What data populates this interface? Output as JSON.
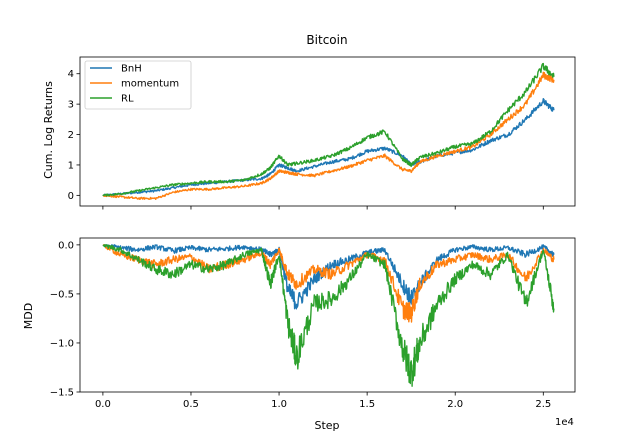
{
  "chart_data": [
    {
      "type": "line",
      "title": "Bitcoin",
      "xlabel": "",
      "ylabel": "Cum. Log Returns",
      "xlim": [
        -1300,
        26800
      ],
      "ylim": [
        -0.35,
        4.55
      ],
      "yticks": [
        0,
        1,
        2,
        3,
        4
      ],
      "ytick_labels": [
        "0",
        "1",
        "2",
        "3",
        "4"
      ],
      "legend": "top-left",
      "grid": false,
      "x": [
        0,
        1000,
        2000,
        3000,
        4000,
        5000,
        6000,
        7000,
        8000,
        9000,
        9500,
        10000,
        10500,
        11000,
        12000,
        13000,
        14000,
        15000,
        16000,
        17000,
        17500,
        18000,
        19000,
        20000,
        21000,
        22000,
        23000,
        24000,
        25000,
        25600
      ],
      "series": [
        {
          "name": "BnH",
          "color": "#1f77b4",
          "values": [
            0,
            0.05,
            0.1,
            0.15,
            0.25,
            0.35,
            0.4,
            0.45,
            0.5,
            0.55,
            0.7,
            1.0,
            0.9,
            0.8,
            0.95,
            1.1,
            1.2,
            1.45,
            1.55,
            1.3,
            1.0,
            1.1,
            1.3,
            1.4,
            1.5,
            1.8,
            2.0,
            2.5,
            3.1,
            2.8
          ]
        },
        {
          "name": "momentum",
          "color": "#ff7f0e",
          "values": [
            0,
            -0.05,
            -0.1,
            -0.1,
            0.1,
            0.2,
            0.2,
            0.25,
            0.3,
            0.4,
            0.55,
            0.8,
            0.75,
            0.7,
            0.65,
            0.8,
            0.95,
            1.15,
            1.3,
            0.85,
            0.8,
            1.1,
            1.3,
            1.45,
            1.6,
            2.0,
            2.5,
            3.0,
            3.95,
            3.8
          ]
        },
        {
          "name": "RL",
          "color": "#2ca02c",
          "values": [
            0,
            0.05,
            0.15,
            0.25,
            0.35,
            0.4,
            0.45,
            0.45,
            0.5,
            0.7,
            0.9,
            1.3,
            1.0,
            1.05,
            1.15,
            1.3,
            1.55,
            1.9,
            2.1,
            1.2,
            1.0,
            1.25,
            1.4,
            1.6,
            1.7,
            2.1,
            2.8,
            3.4,
            4.25,
            3.9
          ]
        }
      ]
    },
    {
      "type": "line",
      "title": "",
      "xlabel": "Step",
      "ylabel": "MDD",
      "x_offset_label": "1e4",
      "xlim": [
        -1300,
        26800
      ],
      "ylim": [
        -1.5,
        0.07
      ],
      "xticks": [
        0,
        5000,
        10000,
        15000,
        20000,
        25000
      ],
      "xtick_labels": [
        "0.0",
        "0.5",
        "1.0",
        "1.5",
        "2.0",
        "2.5"
      ],
      "yticks": [
        0,
        -0.5,
        -1.0,
        -1.5
      ],
      "ytick_labels": [
        "0.0",
        "−0.5",
        "−1.0",
        "−1.5"
      ],
      "grid": false,
      "x": [
        0,
        1000,
        2000,
        3000,
        4000,
        5000,
        6000,
        7000,
        8000,
        9000,
        9500,
        10000,
        10500,
        11000,
        12000,
        13000,
        14000,
        15000,
        16000,
        17000,
        17500,
        18000,
        19000,
        20000,
        21000,
        22000,
        23000,
        24000,
        25000,
        25600
      ],
      "series": [
        {
          "name": "BnH",
          "color": "#1f77b4",
          "values": [
            0,
            -0.03,
            -0.05,
            -0.02,
            -0.06,
            -0.03,
            -0.05,
            -0.04,
            -0.02,
            -0.05,
            -0.1,
            -0.05,
            -0.45,
            -0.6,
            -0.35,
            -0.2,
            -0.15,
            -0.08,
            -0.05,
            -0.4,
            -0.55,
            -0.4,
            -0.15,
            -0.05,
            -0.02,
            -0.05,
            -0.03,
            -0.1,
            -0.02,
            -0.1
          ]
        },
        {
          "name": "momentum",
          "color": "#ff7f0e",
          "values": [
            0,
            -0.1,
            -0.15,
            -0.2,
            -0.15,
            -0.12,
            -0.25,
            -0.2,
            -0.15,
            -0.08,
            -0.2,
            -0.05,
            -0.3,
            -0.4,
            -0.25,
            -0.3,
            -0.2,
            -0.1,
            -0.15,
            -0.65,
            -0.7,
            -0.4,
            -0.2,
            -0.15,
            -0.1,
            -0.15,
            -0.1,
            -0.35,
            -0.05,
            -0.15
          ]
        },
        {
          "name": "RL",
          "color": "#2ca02c",
          "values": [
            0,
            -0.05,
            -0.15,
            -0.25,
            -0.3,
            -0.2,
            -0.25,
            -0.2,
            -0.1,
            -0.05,
            -0.4,
            -0.1,
            -0.8,
            -1.15,
            -0.6,
            -0.55,
            -0.35,
            -0.1,
            -0.2,
            -1.05,
            -1.3,
            -1.0,
            -0.6,
            -0.35,
            -0.2,
            -0.3,
            -0.1,
            -0.6,
            -0.05,
            -0.65
          ]
        }
      ]
    }
  ]
}
